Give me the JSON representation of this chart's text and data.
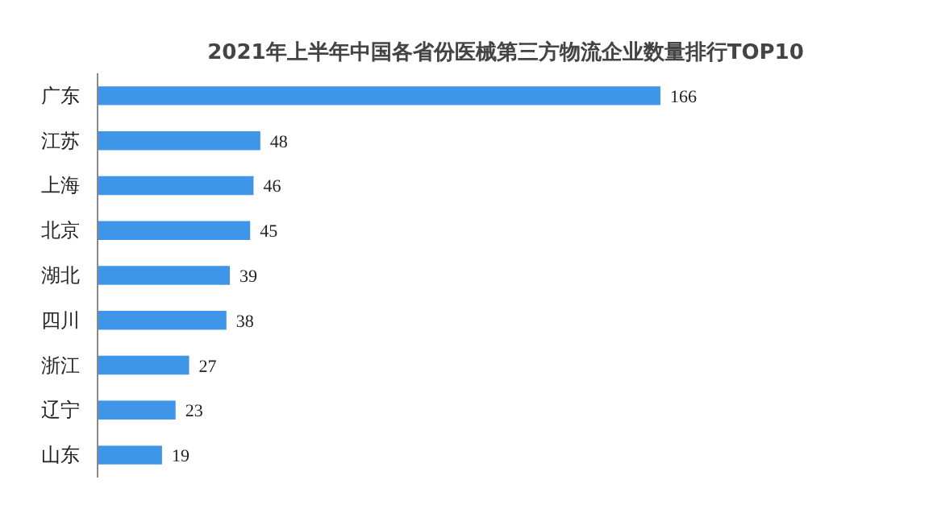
{
  "chart_data": {
    "type": "bar",
    "orientation": "horizontal",
    "title": "2021年上半年中国各省份医械第三方物流企业数量排行TOP10",
    "categories": [
      "广东",
      "江苏",
      "上海",
      "北京",
      "湖北",
      "四川",
      "浙江",
      "辽宁",
      "山东"
    ],
    "values": [
      166,
      48,
      46,
      45,
      39,
      38,
      27,
      23,
      19
    ],
    "color": "#3f95e8",
    "data_labels": true,
    "grid": false
  }
}
